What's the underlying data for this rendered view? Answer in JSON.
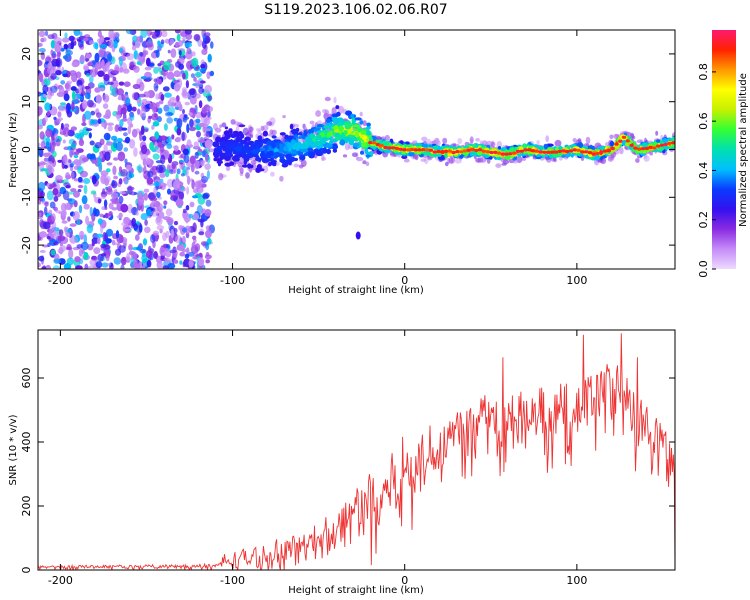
{
  "figure_title": "S119.2023.106.02.06.R07",
  "colors": {
    "snr_line": "#ee3333",
    "axes": "#000000",
    "colormap": [
      "#eedaff",
      "#c58cf8",
      "#8a2be2",
      "#3311ee",
      "#0a3bff",
      "#00bfff",
      "#00e0b0",
      "#33ff33",
      "#c6f000",
      "#ffff00",
      "#ff9900",
      "#ff2200",
      "#ff1a70"
    ]
  },
  "chart_data": [
    {
      "type": "heatmap",
      "title": "S119.2023.106.02.06.R07",
      "xlabel": "Height of straight line (km)",
      "ylabel": "Frequency (Hz)",
      "xlim": [
        -213,
        157
      ],
      "ylim": [
        -25,
        25
      ],
      "xticks": [
        -200,
        -100,
        0,
        100
      ],
      "yticks": [
        -20,
        -10,
        0,
        10,
        20
      ],
      "xtick_labels": [
        "-200",
        "-100",
        "0",
        "100"
      ],
      "ytick_labels": [
        "-20",
        "-10",
        "0",
        "10",
        "20"
      ],
      "colorbar": {
        "label": "Normalized spectral amplitude",
        "range": [
          0,
          0.97
        ],
        "ticks": [
          0.0,
          0.2,
          0.4,
          0.6,
          0.8
        ],
        "tick_labels": [
          "0.0",
          "0.2",
          "0.4",
          "0.6",
          "0.8"
        ]
      },
      "features": {
        "noise_region_x": [
          -213,
          -112
        ],
        "signal_track": {
          "x": [
            -110,
            -100,
            -90,
            -80,
            -70,
            -60,
            -50,
            -40,
            -30,
            -20,
            -10,
            0,
            10,
            20,
            30,
            40,
            50,
            60,
            70,
            80,
            90,
            100,
            110,
            120,
            127,
            135,
            145,
            157
          ],
          "freq_hz": [
            0,
            0.5,
            -0.5,
            0,
            0,
            1,
            2.5,
            4,
            4,
            1.5,
            0.5,
            0,
            0,
            -0.5,
            -0.5,
            0,
            -0.5,
            -1,
            0,
            -0.5,
            -0.5,
            0,
            -1,
            0,
            2.5,
            0,
            0.5,
            1.5
          ],
          "peak_amplitude": [
            0.3,
            0.35,
            0.35,
            0.4,
            0.45,
            0.5,
            0.6,
            0.7,
            0.78,
            0.85,
            0.9,
            0.93,
            0.93,
            0.93,
            0.93,
            0.93,
            0.93,
            0.93,
            0.93,
            0.93,
            0.93,
            0.93,
            0.93,
            0.93,
            0.95,
            0.93,
            0.93,
            0.93
          ]
        },
        "isolated_blob": {
          "x": -27,
          "freq_hz": -18
        }
      }
    },
    {
      "type": "line",
      "title": "",
      "xlabel": "Height of straight line (km)",
      "ylabel": "SNR (10 * v/v)",
      "xlim": [
        -213,
        157
      ],
      "ylim": [
        0,
        750
      ],
      "xticks": [
        -200,
        -100,
        0,
        100
      ],
      "yticks": [
        0,
        200,
        400,
        600
      ],
      "xtick_labels": [
        "-200",
        "-100",
        "0",
        "100"
      ],
      "ytick_labels": [
        "0",
        "200",
        "400",
        "600"
      ],
      "series": [
        {
          "name": "SNR",
          "envelope_x": [
            -213,
            -110,
            -105,
            -100,
            -80,
            -60,
            -40,
            -30,
            -20,
            -10,
            0,
            10,
            20,
            30,
            40,
            60,
            80,
            100,
            110,
            120,
            130,
            140,
            150,
            157
          ],
          "envelope_mean": [
            10,
            12,
            25,
            30,
            45,
            70,
            120,
            180,
            220,
            260,
            300,
            340,
            390,
            430,
            450,
            470,
            480,
            500,
            540,
            560,
            500,
            450,
            400,
            330
          ],
          "envelope_spread": [
            5,
            6,
            25,
            30,
            40,
            45,
            70,
            90,
            110,
            120,
            120,
            110,
            100,
            95,
            90,
            90,
            90,
            100,
            110,
            120,
            110,
            90,
            70,
            60
          ],
          "peak_values": [
            {
              "x": 104,
              "y": 735
            },
            {
              "x": 126,
              "y": 740
            },
            {
              "x": 57,
              "y": 665
            },
            {
              "x": 135,
              "y": 665
            }
          ]
        }
      ]
    }
  ]
}
